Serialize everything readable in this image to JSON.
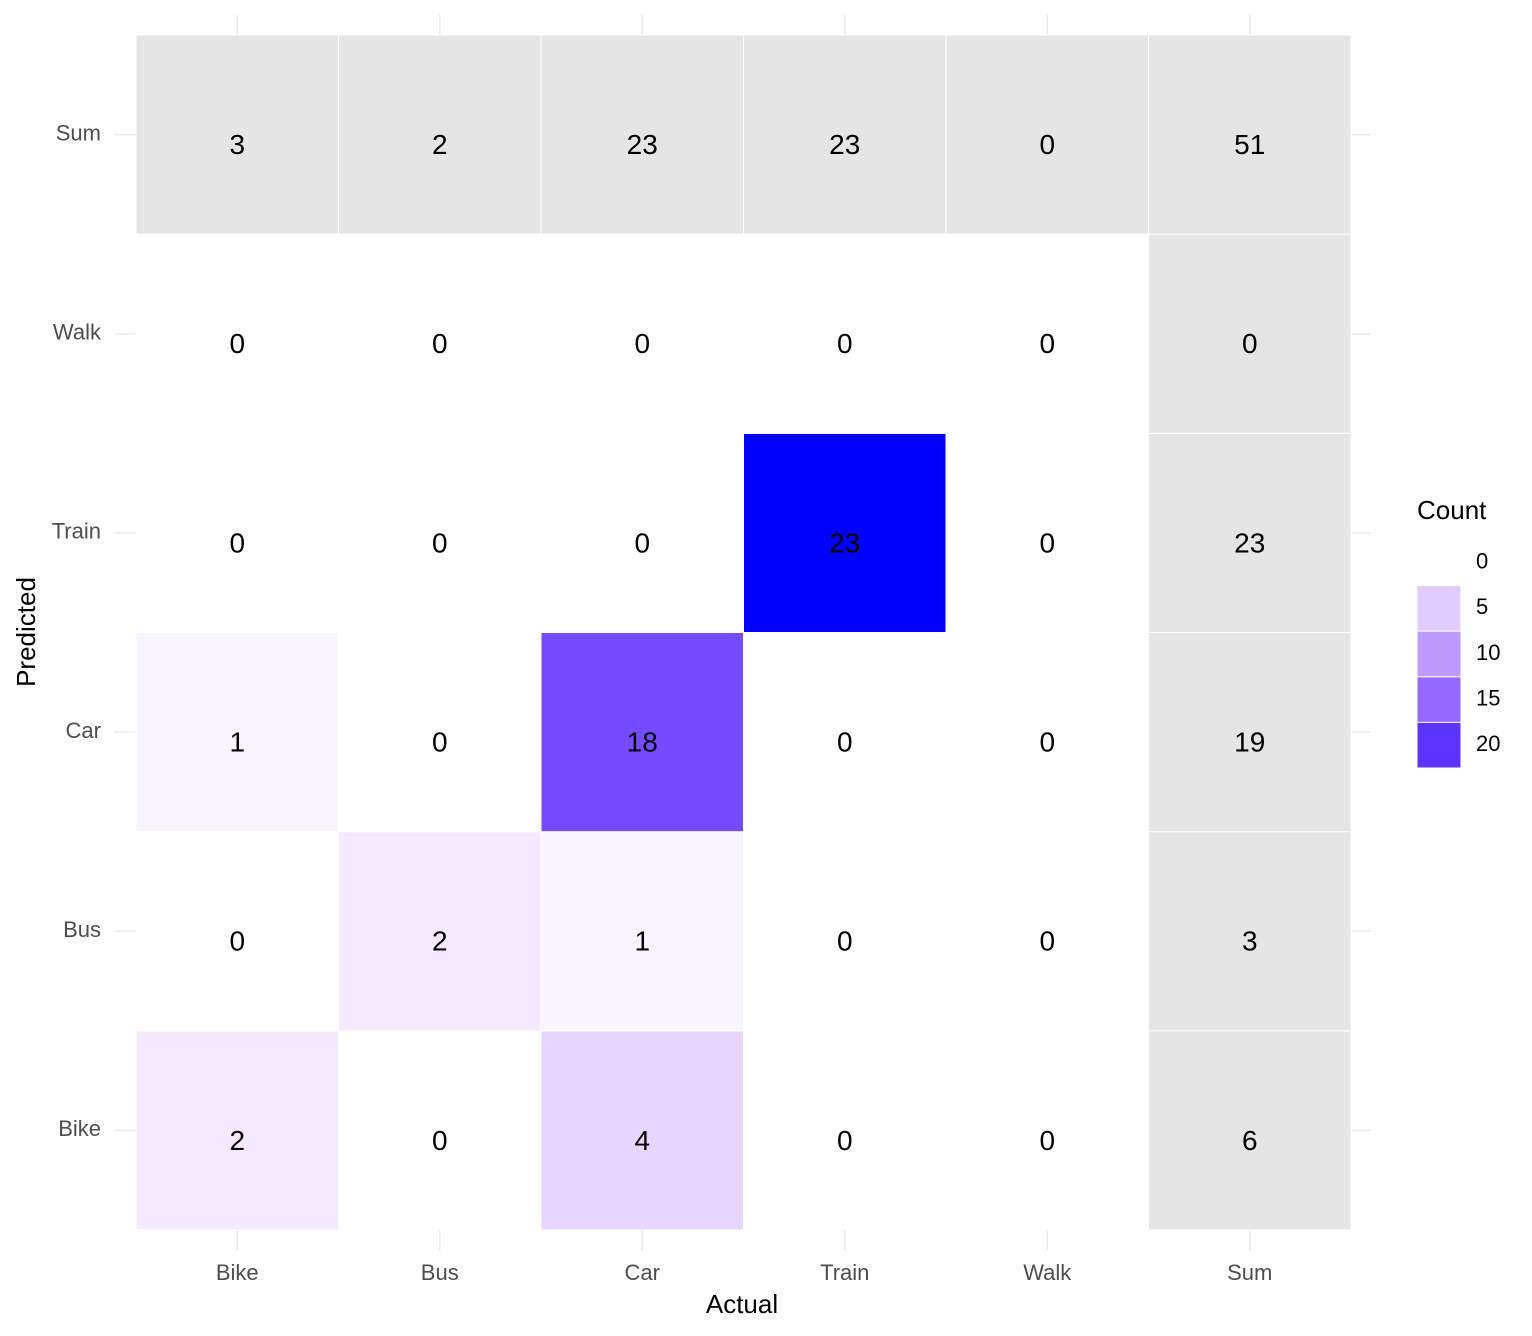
{
  "chart_data": {
    "type": "heatmap",
    "x_label": "Actual",
    "y_label": "Predicted",
    "x_categories": [
      "Bike",
      "Bus",
      "Car",
      "Train",
      "Walk",
      "Sum"
    ],
    "y_categories": [
      "Bike",
      "Bus",
      "Car",
      "Train",
      "Walk",
      "Sum"
    ],
    "z": [
      [
        2,
        0,
        4,
        0,
        0,
        6
      ],
      [
        0,
        2,
        1,
        0,
        0,
        3
      ],
      [
        1,
        0,
        18,
        0,
        0,
        19
      ],
      [
        0,
        0,
        0,
        23,
        0,
        23
      ],
      [
        0,
        0,
        0,
        0,
        0,
        0
      ],
      [
        3,
        2,
        23,
        23,
        0,
        51
      ]
    ],
    "margins": true,
    "margin_color": "#E5E5E5",
    "colors": [
      "#FFFFFF",
      "#0000FF"
    ],
    "zlim": [
      0,
      23
    ],
    "legend": {
      "title": "Count",
      "ticks": [
        0,
        5,
        10,
        15,
        20
      ]
    },
    "grid": true
  }
}
